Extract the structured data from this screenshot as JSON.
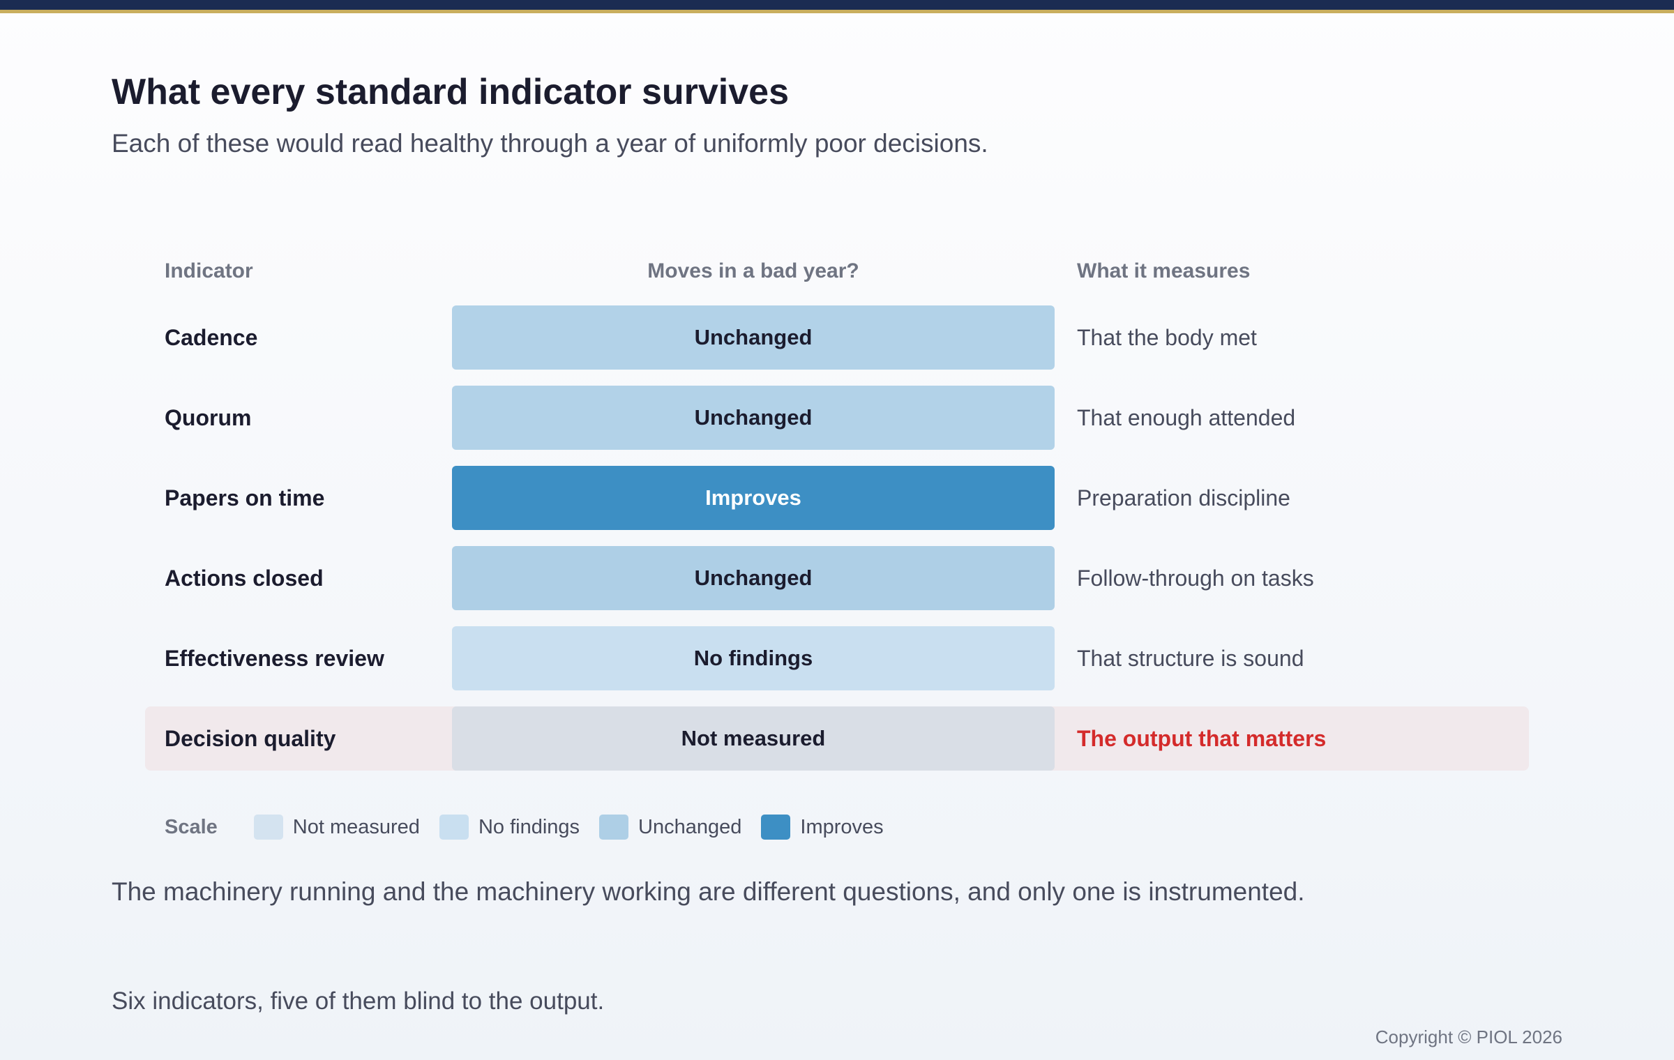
{
  "header": {
    "title": "What every standard indicator survives",
    "subtitle": "Each of these would read healthy through a year of uniformly poor decisions."
  },
  "table": {
    "columns": {
      "indicator": "Indicator",
      "moves": "Moves in a bad year?",
      "measures": "What it measures"
    },
    "rows": [
      {
        "indicator": "Cadence",
        "status": "Unchanged",
        "measures": "That the body met"
      },
      {
        "indicator": "Quorum",
        "status": "Unchanged",
        "measures": "That enough attended"
      },
      {
        "indicator": "Papers on time",
        "status": "Improves",
        "measures": "Preparation discipline"
      },
      {
        "indicator": "Actions closed",
        "status": "Unchanged",
        "measures": "Follow-through on tasks"
      },
      {
        "indicator": "Effectiveness review",
        "status": "No findings",
        "measures": "That structure is sound"
      },
      {
        "indicator": "Decision quality",
        "status": "Not measured",
        "measures": "The output that matters"
      }
    ]
  },
  "legend": {
    "title": "Scale",
    "items": [
      {
        "label": "Not measured",
        "color": "#d4e3f0"
      },
      {
        "label": "No findings",
        "color": "#c9dff0"
      },
      {
        "label": "Unchanged",
        "color": "#aecfe6"
      },
      {
        "label": "Improves",
        "color": "#3d8fc4"
      }
    ]
  },
  "colors": {
    "alert": "#d42b2b",
    "highlight_row": "#f1e9ec",
    "top_bar": "#1b2c52",
    "top_bar_accent": "#c9ae5e"
  },
  "footer": {
    "conclusion": "The machinery running and the machinery working are different questions, and only one is instrumented.",
    "note": "Six indicators, five of them blind to the output.",
    "copyright": "Copyright © PIOL 2026"
  }
}
